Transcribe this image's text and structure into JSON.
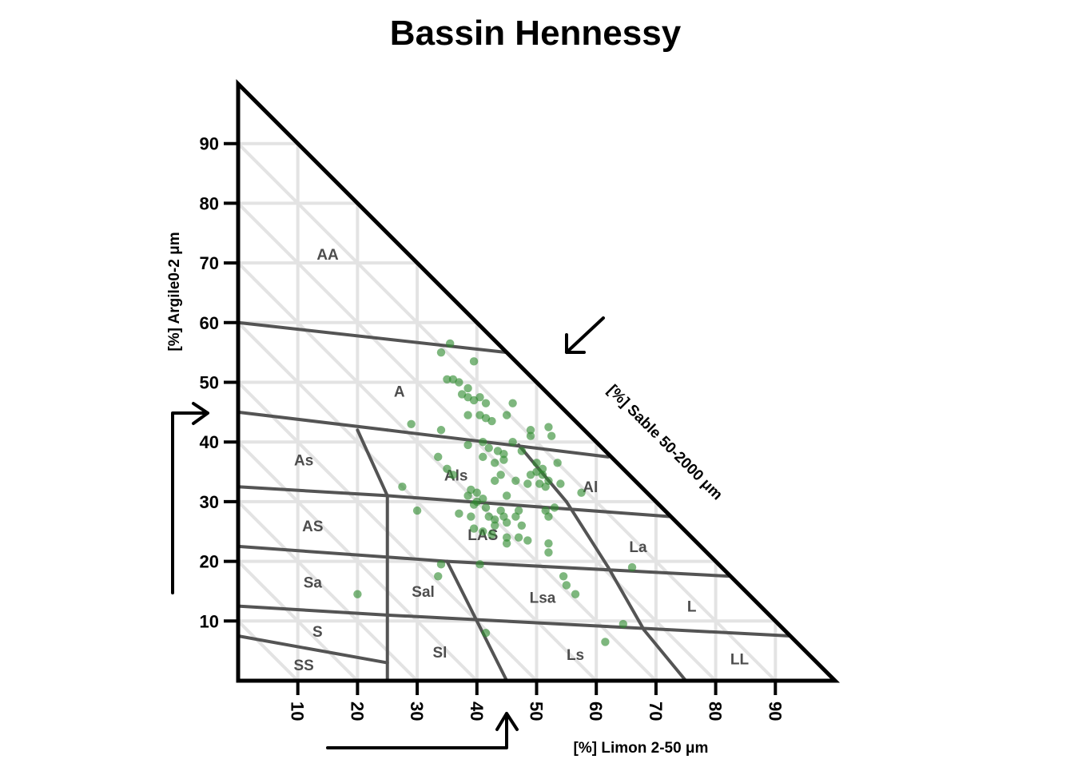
{
  "chart_data": {
    "type": "scatter",
    "subtype": "ternary-texture-triangle",
    "title": "Bassin Hennessy",
    "axes": {
      "clay": {
        "label": "[%] Argile0-2 μm",
        "ticks": [
          10,
          20,
          30,
          40,
          50,
          60,
          70,
          80,
          90
        ],
        "range": [
          0,
          100
        ]
      },
      "silt": {
        "label": "[%] Limon 2-50 μm",
        "ticks": [
          10,
          20,
          30,
          40,
          50,
          60,
          70,
          80,
          90
        ],
        "range": [
          0,
          100
        ]
      },
      "sand": {
        "label": "[%] Sable 50-2000 μm",
        "range": [
          0,
          100
        ]
      }
    },
    "grid": true,
    "point_color": "#2e8b2e",
    "line_color": "#545454",
    "grid_color": "#e3e3e3",
    "classes": [
      {
        "label": "AA",
        "silt": 15,
        "clay": 71.5
      },
      {
        "label": "A",
        "silt": 27,
        "clay": 48.5
      },
      {
        "label": "As",
        "silt": 11,
        "clay": 37
      },
      {
        "label": "Als",
        "silt": 36.5,
        "clay": 34.5
      },
      {
        "label": "Al",
        "silt": 59,
        "clay": 32.5
      },
      {
        "label": "AS",
        "silt": 12.5,
        "clay": 26
      },
      {
        "label": "LAS",
        "silt": 41,
        "clay": 24.5
      },
      {
        "label": "La",
        "silt": 67,
        "clay": 22.5
      },
      {
        "label": "Sa",
        "silt": 12.5,
        "clay": 16.5
      },
      {
        "label": "Sal",
        "silt": 31,
        "clay": 15
      },
      {
        "label": "Lsa",
        "silt": 51,
        "clay": 14
      },
      {
        "label": "L",
        "silt": 76,
        "clay": 12.5
      },
      {
        "label": "S",
        "silt": 13.3,
        "clay": 8.3
      },
      {
        "label": "SS",
        "silt": 11,
        "clay": 2.7
      },
      {
        "label": "Sl",
        "silt": 33.8,
        "clay": 4.8
      },
      {
        "label": "Ls",
        "silt": 56.5,
        "clay": 4.4
      },
      {
        "label": "LL",
        "silt": 84,
        "clay": 3.7
      }
    ],
    "points": [
      {
        "silt": 35.5,
        "clay": 56.5
      },
      {
        "silt": 34,
        "clay": 55
      },
      {
        "silt": 39.5,
        "clay": 53.5
      },
      {
        "silt": 35,
        "clay": 50.5
      },
      {
        "silt": 36,
        "clay": 50.5
      },
      {
        "silt": 37,
        "clay": 50
      },
      {
        "silt": 38.5,
        "clay": 49
      },
      {
        "silt": 37.5,
        "clay": 48
      },
      {
        "silt": 38.5,
        "clay": 47.5
      },
      {
        "silt": 39.5,
        "clay": 47
      },
      {
        "silt": 40.5,
        "clay": 47.5
      },
      {
        "silt": 41.5,
        "clay": 46.5
      },
      {
        "silt": 46,
        "clay": 46.5
      },
      {
        "silt": 38.5,
        "clay": 44.5
      },
      {
        "silt": 40.5,
        "clay": 44.5
      },
      {
        "silt": 41.5,
        "clay": 44
      },
      {
        "silt": 42.5,
        "clay": 43.5
      },
      {
        "silt": 45,
        "clay": 44.5
      },
      {
        "silt": 29,
        "clay": 43
      },
      {
        "silt": 34,
        "clay": 42
      },
      {
        "silt": 52,
        "clay": 42.5
      },
      {
        "silt": 49,
        "clay": 42
      },
      {
        "silt": 49,
        "clay": 41
      },
      {
        "silt": 52.5,
        "clay": 41
      },
      {
        "silt": 46,
        "clay": 40
      },
      {
        "silt": 41,
        "clay": 40
      },
      {
        "silt": 42,
        "clay": 39
      },
      {
        "silt": 38.5,
        "clay": 39.5
      },
      {
        "silt": 43.5,
        "clay": 38.5
      },
      {
        "silt": 44.5,
        "clay": 38
      },
      {
        "silt": 41,
        "clay": 37.5
      },
      {
        "silt": 47.5,
        "clay": 38.5
      },
      {
        "silt": 33.5,
        "clay": 37.5
      },
      {
        "silt": 43,
        "clay": 36.5
      },
      {
        "silt": 44.5,
        "clay": 37
      },
      {
        "silt": 50,
        "clay": 36.5
      },
      {
        "silt": 51,
        "clay": 35.5
      },
      {
        "silt": 53.5,
        "clay": 36.5
      },
      {
        "silt": 35,
        "clay": 35.5
      },
      {
        "silt": 36,
        "clay": 34.5
      },
      {
        "silt": 44,
        "clay": 34.5
      },
      {
        "silt": 49,
        "clay": 34.5
      },
      {
        "silt": 50,
        "clay": 35
      },
      {
        "silt": 51,
        "clay": 34.5
      },
      {
        "silt": 43,
        "clay": 33.5
      },
      {
        "silt": 46.5,
        "clay": 33.5
      },
      {
        "silt": 48.5,
        "clay": 33
      },
      {
        "silt": 50.5,
        "clay": 33
      },
      {
        "silt": 51.5,
        "clay": 32.5
      },
      {
        "silt": 52,
        "clay": 33.5
      },
      {
        "silt": 54,
        "clay": 33
      },
      {
        "silt": 57.5,
        "clay": 31.5
      },
      {
        "silt": 27.5,
        "clay": 32.5
      },
      {
        "silt": 39,
        "clay": 32
      },
      {
        "silt": 40,
        "clay": 31.5
      },
      {
        "silt": 38.5,
        "clay": 31
      },
      {
        "silt": 41,
        "clay": 30.5
      },
      {
        "silt": 45,
        "clay": 31
      },
      {
        "silt": 40,
        "clay": 30
      },
      {
        "silt": 39.5,
        "clay": 29.5
      },
      {
        "silt": 41.5,
        "clay": 29
      },
      {
        "silt": 44,
        "clay": 28.5
      },
      {
        "silt": 47,
        "clay": 28.5
      },
      {
        "silt": 51.5,
        "clay": 28.5
      },
      {
        "silt": 53,
        "clay": 29
      },
      {
        "silt": 30,
        "clay": 28.5
      },
      {
        "silt": 37,
        "clay": 28
      },
      {
        "silt": 39,
        "clay": 27.5
      },
      {
        "silt": 42,
        "clay": 27.5
      },
      {
        "silt": 43,
        "clay": 27
      },
      {
        "silt": 44.5,
        "clay": 27.5
      },
      {
        "silt": 46.5,
        "clay": 27.5
      },
      {
        "silt": 52,
        "clay": 27.5
      },
      {
        "silt": 43,
        "clay": 26
      },
      {
        "silt": 45,
        "clay": 26.5
      },
      {
        "silt": 47.5,
        "clay": 26
      },
      {
        "silt": 39.5,
        "clay": 25.5
      },
      {
        "silt": 41,
        "clay": 25
      },
      {
        "silt": 42.5,
        "clay": 24.5
      },
      {
        "silt": 45,
        "clay": 24
      },
      {
        "silt": 47,
        "clay": 24
      },
      {
        "silt": 48.5,
        "clay": 23.5
      },
      {
        "silt": 52,
        "clay": 23
      },
      {
        "silt": 45,
        "clay": 23
      },
      {
        "silt": 52,
        "clay": 21.5
      },
      {
        "silt": 34,
        "clay": 19.5
      },
      {
        "silt": 40.5,
        "clay": 19.5
      },
      {
        "silt": 66,
        "clay": 19
      },
      {
        "silt": 33.5,
        "clay": 17.5
      },
      {
        "silt": 54.5,
        "clay": 17.5
      },
      {
        "silt": 55,
        "clay": 16
      },
      {
        "silt": 56.5,
        "clay": 14.5
      },
      {
        "silt": 20,
        "clay": 14.5
      },
      {
        "silt": 64.5,
        "clay": 9.5
      },
      {
        "silt": 41.5,
        "clay": 8
      },
      {
        "silt": 61.5,
        "clay": 6.5
      }
    ]
  }
}
